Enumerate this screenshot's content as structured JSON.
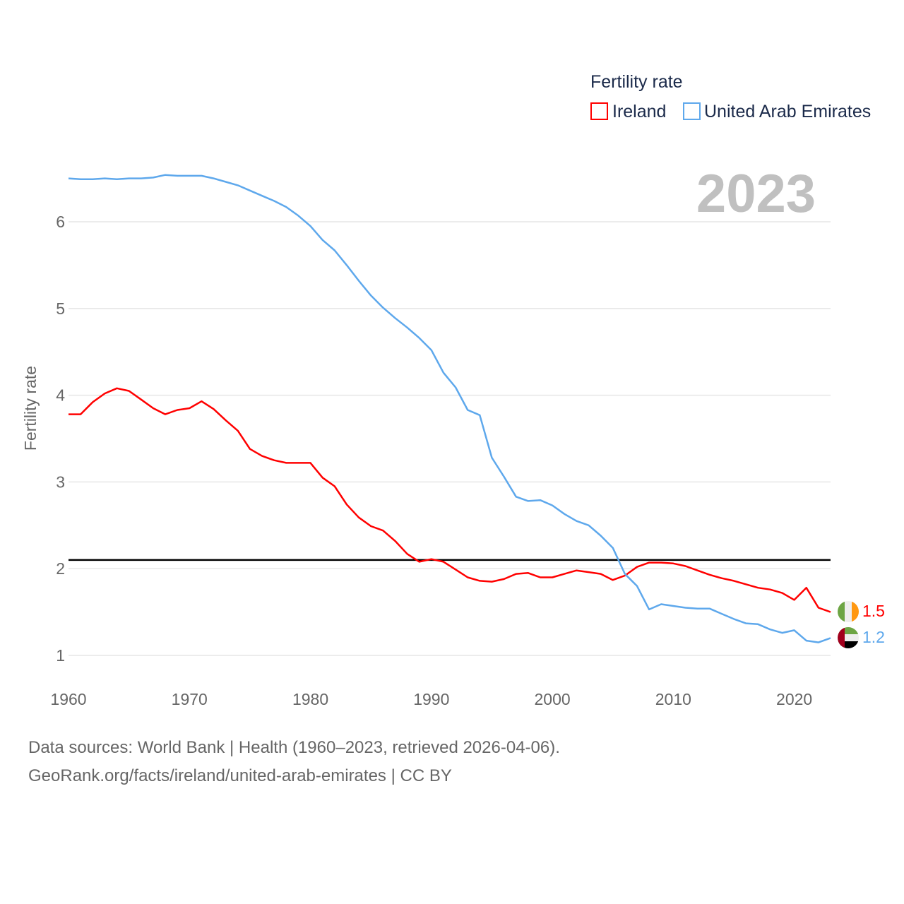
{
  "chart_data": {
    "type": "line",
    "legend_title": "Fertility rate",
    "legend_position": "top-right",
    "ylabel": "Fertility rate",
    "xlabel": "",
    "year_label": "2023",
    "xlim": [
      1960,
      2023
    ],
    "ylim": [
      0.8,
      6.8
    ],
    "yticks": [
      1,
      2,
      3,
      4,
      5,
      6
    ],
    "xticks": [
      1960,
      1970,
      1980,
      1990,
      2000,
      2010,
      2020
    ],
    "grid": true,
    "reference_line": 2.1,
    "x_start": 1960,
    "series": [
      {
        "name": "Ireland",
        "color": "#ff0000",
        "end_label": "1.5",
        "values": [
          3.78,
          3.78,
          3.92,
          4.02,
          4.08,
          4.05,
          3.95,
          3.85,
          3.78,
          3.83,
          3.85,
          3.93,
          3.84,
          3.71,
          3.59,
          3.38,
          3.3,
          3.25,
          3.22,
          3.22,
          3.22,
          3.05,
          2.95,
          2.74,
          2.59,
          2.49,
          2.44,
          2.32,
          2.17,
          2.08,
          2.11,
          2.08,
          1.99,
          1.9,
          1.86,
          1.85,
          1.88,
          1.94,
          1.95,
          1.9,
          1.9,
          1.94,
          1.98,
          1.96,
          1.94,
          1.87,
          1.92,
          2.02,
          2.07,
          2.07,
          2.06,
          2.03,
          1.98,
          1.93,
          1.89,
          1.86,
          1.82,
          1.78,
          1.76,
          1.72,
          1.64,
          1.78,
          1.55,
          1.5
        ]
      },
      {
        "name": "United Arab Emirates",
        "color": "#5ea8ec",
        "end_label": "1.2",
        "values": [
          6.5,
          6.49,
          6.49,
          6.5,
          6.49,
          6.5,
          6.5,
          6.51,
          6.54,
          6.53,
          6.53,
          6.53,
          6.5,
          6.46,
          6.42,
          6.36,
          6.3,
          6.24,
          6.17,
          6.07,
          5.95,
          5.79,
          5.67,
          5.5,
          5.32,
          5.15,
          5.01,
          4.89,
          4.78,
          4.66,
          4.52,
          4.26,
          4.09,
          3.83,
          3.77,
          3.28,
          3.06,
          2.83,
          2.78,
          2.79,
          2.73,
          2.63,
          2.55,
          2.5,
          2.38,
          2.24,
          1.94,
          1.8,
          1.53,
          1.59,
          1.57,
          1.55,
          1.54,
          1.54,
          1.48,
          1.42,
          1.37,
          1.36,
          1.3,
          1.26,
          1.29,
          1.17,
          1.15,
          1.2
        ]
      }
    ]
  },
  "footer": {
    "line1": "Data sources: World Bank | Health (1960–2023, retrieved 2026-04-06).",
    "line2": "GeoRank.org/facts/ireland/united-arab-emirates | CC BY"
  }
}
